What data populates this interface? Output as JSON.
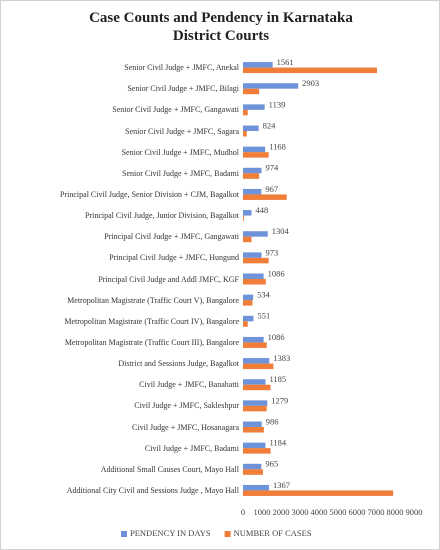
{
  "chart_data": {
    "type": "hbar",
    "title": "Case Counts and Pendency in Karnataka District Courts",
    "categories": [
      "Senior Civil Judge + JMFC, Anekal",
      "Senior Civil Judge + JMFC, Bilagi",
      "Senior Civil Judge + JMFC, Gangawati",
      "Senior Civil Judge + JMFC, Sagara",
      "Senior Civil Judge + JMFC, Mudhol",
      "Senior Civil Judge + JMFC, Badami",
      "Principal Civil Judge, Senior Division + CJM, Bagalkot",
      "Principal Civil Judge, Junior Division, Bagalkot",
      "Principal Civil Judge + JMFC, Gangawati",
      "Principal Civil Judge + JMFC, Hungund",
      "Principal Civil Judge and Addl JMFC, KGF",
      "Metropolitan Magistrate (Traffic Court V), Bangalore",
      "Metropolitan Magistrate (Traffic Court IV), Bangalore",
      "Metropolitan Magistrate (Traffic Court III), Bangalore",
      "District and Sessions Judge, Bagalkot",
      "Civil Judge + JMFC, Banahatti",
      "Civil Judge + JMFC, Sakleshpur",
      "Civil Judge + JMFC, Hosanagara",
      "Civil Judge + JMFC, Badami",
      "Additional Small Causes Court, Mayo Hall",
      "Additional City Civil and Sessions Judge , Mayo Hall"
    ],
    "series": [
      {
        "name": "PENDENCY IN DAYS",
        "color": "#6f93d8",
        "data_labels": true,
        "values": [
          1561,
          2903,
          1139,
          824,
          1168,
          974,
          967,
          448,
          1304,
          973,
          1086,
          534,
          551,
          1086,
          1383,
          1185,
          1279,
          986,
          1184,
          965,
          1367
        ]
      },
      {
        "name": "NUMBER OF CASES",
        "color": "#f07d38",
        "data_labels": false,
        "values": [
          7050,
          850,
          250,
          200,
          1350,
          850,
          2300,
          50,
          450,
          1350,
          1200,
          500,
          250,
          1250,
          1600,
          1450,
          1250,
          1100,
          1450,
          1050,
          7900
        ]
      }
    ],
    "xlim": [
      0,
      9000
    ],
    "xticks": [
      0,
      1000,
      2000,
      3000,
      4000,
      5000,
      6000,
      7000,
      8000,
      9000
    ],
    "legend": "bottom"
  }
}
